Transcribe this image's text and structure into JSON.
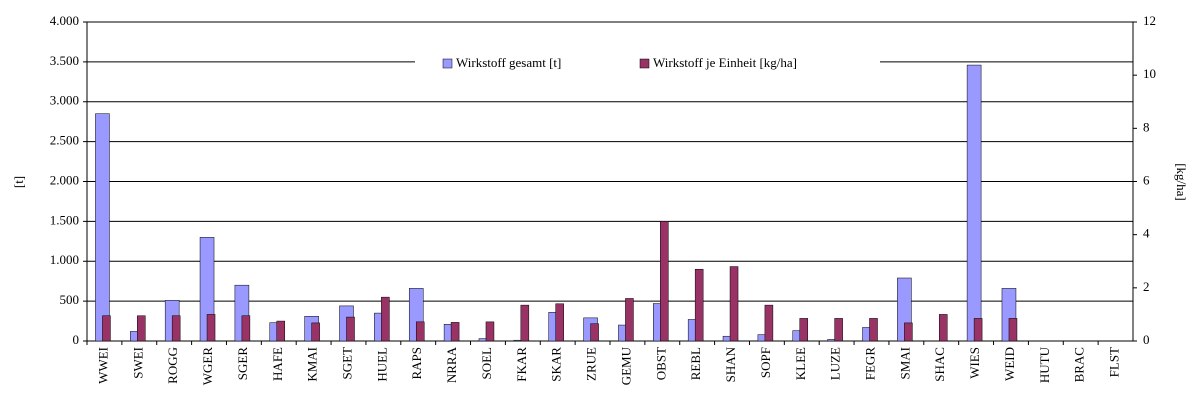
{
  "chart_data": {
    "type": "bar",
    "categories": [
      "WWEI",
      "SWEI",
      "ROGG",
      "WGER",
      "SGER",
      "HAFE",
      "KMAI",
      "SGET",
      "HUEL",
      "RAPS",
      "NRRA",
      "SOEL",
      "FKAR",
      "SKAR",
      "ZRUE",
      "GEMU",
      "OBST",
      "REBL",
      "SHAN",
      "SOPF",
      "KLEE",
      "LUZE",
      "FEGR",
      "SMAI",
      "SHAC",
      "WIES",
      "WEID",
      "HUTU",
      "BRAC",
      "FLST"
    ],
    "series": [
      {
        "name": "Wirkstoff gesamt [t]",
        "color": "#9999ff",
        "values": [
          2850,
          120,
          510,
          1300,
          700,
          230,
          310,
          440,
          350,
          660,
          210,
          30,
          10,
          360,
          290,
          200,
          470,
          270,
          60,
          80,
          130,
          20,
          170,
          790,
          0,
          3460,
          660,
          0,
          0,
          0
        ]
      },
      {
        "name": "Wirkstoff je Einheit [kg/ha]",
        "color": "#993366",
        "axis": "y2",
        "values": [
          0.95,
          0.95,
          0.95,
          1.0,
          0.95,
          0.75,
          0.68,
          0.9,
          1.65,
          0.72,
          0.7,
          0.72,
          1.35,
          1.4,
          0.65,
          1.6,
          4.5,
          2.7,
          2.8,
          1.35,
          0.85,
          0.85,
          0.85,
          0.68,
          1.0,
          0.85,
          0.85,
          0,
          0,
          0
        ]
      }
    ],
    "ylabel": "[t]",
    "y2label": "[kg/ha]",
    "ylim": [
      0,
      4000
    ],
    "yticks": [
      0,
      500,
      {
        "value": 1000,
        "label": "1.000"
      },
      {
        "value": 1500,
        "label": "1.500"
      },
      {
        "value": 2000,
        "label": "2.000"
      },
      {
        "value": 2500,
        "label": "2.500"
      },
      {
        "value": 3000,
        "label": "3.000"
      },
      {
        "value": 3500,
        "label": "3.500"
      },
      {
        "value": 4000,
        "label": "4.000"
      }
    ],
    "y2lim": [
      0,
      12
    ],
    "y2ticks": [
      0,
      2,
      4,
      6,
      8,
      10,
      12
    ],
    "grid": true,
    "legend": "top"
  }
}
